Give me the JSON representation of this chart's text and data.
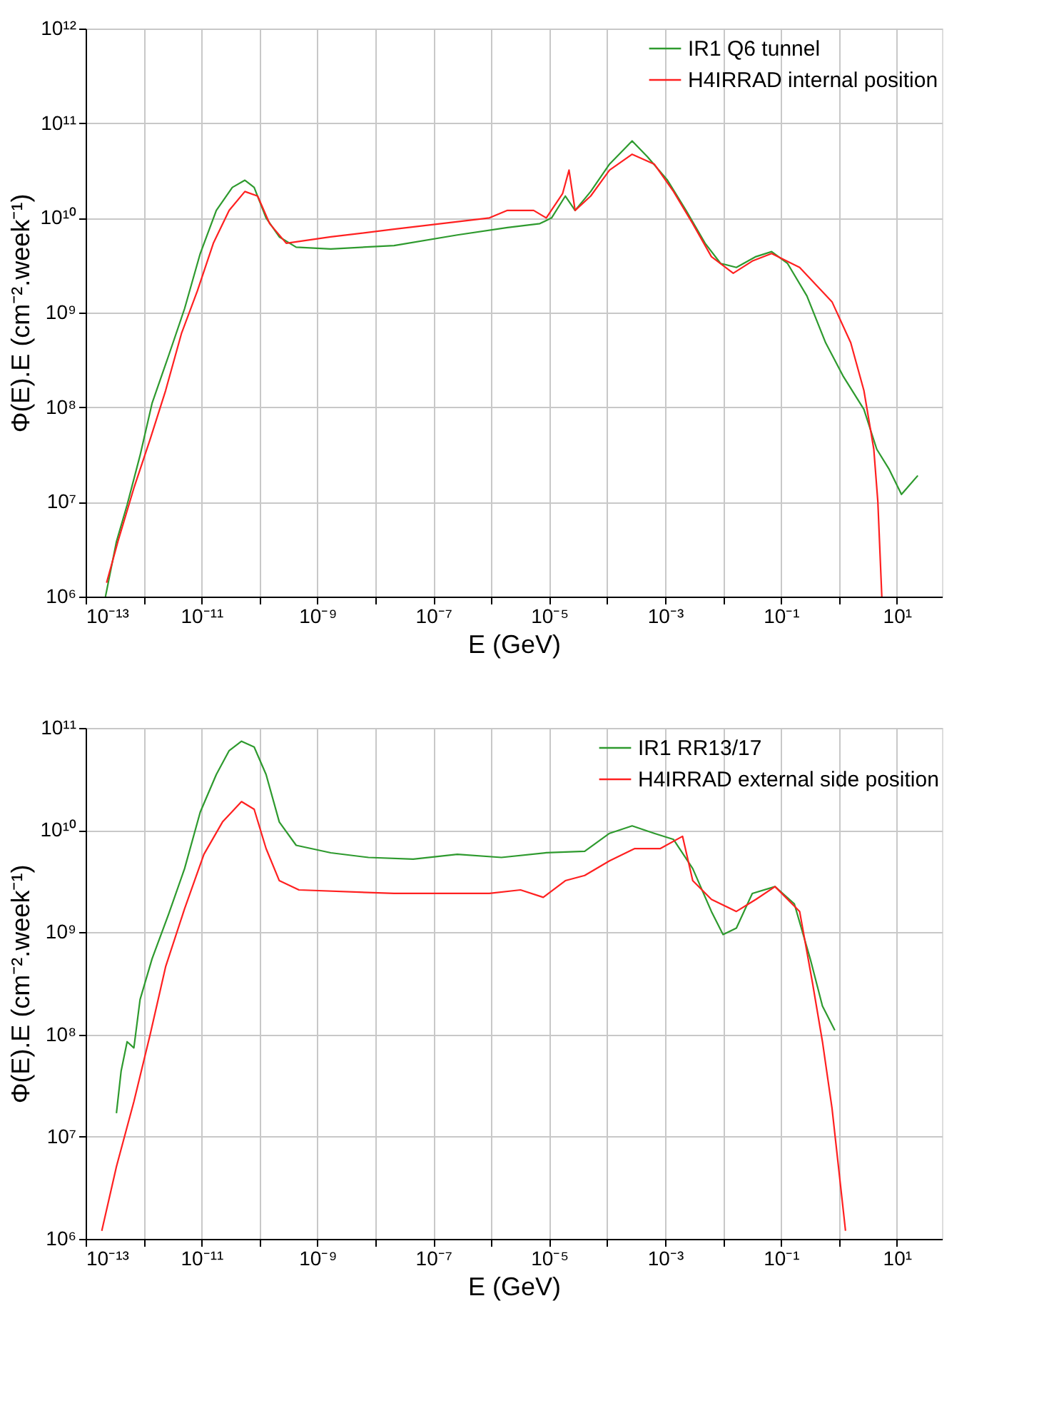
{
  "chart_data": [
    {
      "type": "line",
      "xlabel": "E (GeV)",
      "ylabel": "Φ(E).E  (cm⁻².week⁻¹)",
      "log": "xy",
      "grid": true,
      "legend": "top right",
      "marker": "none",
      "line_style": "solid",
      "xlim": [
        1e-13,
        60
      ],
      "ylim": [
        1000000.0,
        1000000000000.0
      ],
      "xticks": [
        {
          "value": 1e-13,
          "label": "10⁻¹³"
        },
        {
          "value": 1e-12,
          "label": null
        },
        {
          "value": 1e-11,
          "label": "10⁻¹¹"
        },
        {
          "value": 1e-10,
          "label": null
        },
        {
          "value": 1e-09,
          "label": "10⁻⁹"
        },
        {
          "value": 1e-08,
          "label": null
        },
        {
          "value": 1e-07,
          "label": "10⁻⁷"
        },
        {
          "value": 1e-06,
          "label": null
        },
        {
          "value": 1e-05,
          "label": "10⁻⁵"
        },
        {
          "value": 0.0001,
          "label": null
        },
        {
          "value": 0.001,
          "label": "10⁻³"
        },
        {
          "value": 0.01,
          "label": null
        },
        {
          "value": 0.1,
          "label": "10⁻¹"
        },
        {
          "value": 1,
          "label": null
        },
        {
          "value": 10,
          "label": "10¹"
        }
      ],
      "yticks": [
        {
          "value": 1000000.0,
          "label": "10⁶"
        },
        {
          "value": 10000000.0,
          "label": "10⁷"
        },
        {
          "value": 100000000.0,
          "label": "10⁸"
        },
        {
          "value": 1000000000.0,
          "label": "10⁹"
        },
        {
          "value": 10000000000.0,
          "label": "10¹⁰"
        },
        {
          "value": 100000000000.0,
          "label": "10¹¹"
        },
        {
          "value": 1000000000000.0,
          "label": "10¹²"
        }
      ],
      "series": [
        {
          "name": "IR1 Q6 tunnel",
          "color": "#2e9a2e",
          "x": [
            2.2e-13,
            3.4e-13,
            5.2e-13,
            8.7e-13,
            1.4e-12,
            2.7e-12,
            5.1e-12,
            9.5e-12,
            1.8e-11,
            3.4e-11,
            5.6e-11,
            8.1e-11,
            1.3e-10,
            2.2e-10,
            4.3e-10,
            1.7e-09,
            2.1e-08,
            2.6e-07,
            1.9e-06,
            6.9e-06,
            1.1e-05,
            1.9e-05,
            2.8e-05,
            5.2e-05,
            0.00011,
            0.00027,
            0.0005,
            0.0011,
            0.0023,
            0.0049,
            0.0091,
            0.017,
            0.037,
            0.069,
            0.13,
            0.28,
            0.59,
            1.2,
            2.7,
            4.5,
            7.4,
            12,
            23
          ],
          "values": [
            1000000.0,
            3800000.0,
            9300000.0,
            31000000.0,
            110000000.0,
            350000000.0,
            1100000000.0,
            4200000000.0,
            12000000000.0,
            21000000000.0,
            25000000000.0,
            21000000000.0,
            10000000000.0,
            6300000000.0,
            4900000000.0,
            4700000000.0,
            5100000000.0,
            6600000000.0,
            7900000000.0,
            8700000000.0,
            10000000000.0,
            17000000000.0,
            12000000000.0,
            19000000000.0,
            37000000000.0,
            65000000000.0,
            44000000000.0,
            25000000000.0,
            12000000000.0,
            5400000000.0,
            3300000000.0,
            3000000000.0,
            3900000000.0,
            4400000000.0,
            3300000000.0,
            1500000000.0,
            480000000.0,
            210000000.0,
            95000000.0,
            36000000.0,
            22000000.0,
            12000000.0,
            19000000.0
          ]
        },
        {
          "name": "H4IRRAD internal position",
          "color": "#ff2020",
          "x": [
            2.3e-13,
            3.6e-13,
            6.8e-13,
            1.3e-12,
            2.4e-12,
            4.5e-12,
            8.5e-12,
            1.6e-11,
            3e-11,
            5.6e-11,
            9.3e-11,
            1.5e-10,
            2.9e-10,
            1.7e-09,
            2.1e-08,
            9.3e-07,
            1.9e-06,
            5.4e-06,
            8.9e-06,
            1.7e-05,
            2.2e-05,
            2.8e-05,
            5.2e-05,
            0.00011,
            0.00027,
            0.00065,
            0.0014,
            0.003,
            0.0063,
            0.015,
            0.032,
            0.069,
            0.21,
            0.76,
            1.6,
            2.7,
            4.0,
            4.7,
            5.5
          ],
          "values": [
            1400000.0,
            3800000.0,
            14000000.0,
            46000000.0,
            150000000.0,
            600000000.0,
            1700000000.0,
            5400000000.0,
            12000000000.0,
            19000000000.0,
            17000000000.0,
            8700000000.0,
            5400000000.0,
            6300000000.0,
            7600000000.0,
            10000000000.0,
            12000000000.0,
            12000000000.0,
            10000000000.0,
            18000000000.0,
            32000000000.0,
            12000000000.0,
            17000000000.0,
            32000000000.0,
            47000000000.0,
            37000000000.0,
            19000000000.0,
            8700000000.0,
            3900000000.0,
            2600000000.0,
            3500000000.0,
            4200000000.0,
            3000000000.0,
            1300000000.0,
            480000000.0,
            150000000.0,
            36000000.0,
            10000000.0,
            1000000.0
          ]
        }
      ]
    },
    {
      "type": "line",
      "xlabel": "E (GeV)",
      "ylabel": "Φ(E).E  (cm⁻².week⁻¹)",
      "log": "xy",
      "grid": true,
      "legend": "top right",
      "marker": "none",
      "line_style": "solid",
      "xlim": [
        1e-13,
        60
      ],
      "ylim": [
        1000000.0,
        100000000000.0
      ],
      "xticks": [
        {
          "value": 1e-13,
          "label": "10⁻¹³"
        },
        {
          "value": 1e-12,
          "label": null
        },
        {
          "value": 1e-11,
          "label": "10⁻¹¹"
        },
        {
          "value": 1e-10,
          "label": null
        },
        {
          "value": 1e-09,
          "label": "10⁻⁹"
        },
        {
          "value": 1e-08,
          "label": null
        },
        {
          "value": 1e-07,
          "label": "10⁻⁷"
        },
        {
          "value": 1e-06,
          "label": null
        },
        {
          "value": 1e-05,
          "label": "10⁻⁵"
        },
        {
          "value": 0.0001,
          "label": null
        },
        {
          "value": 0.001,
          "label": "10⁻³"
        },
        {
          "value": 0.01,
          "label": null
        },
        {
          "value": 0.1,
          "label": "10⁻¹"
        },
        {
          "value": 1,
          "label": null
        },
        {
          "value": 10,
          "label": "10¹"
        }
      ],
      "yticks": [
        {
          "value": 1000000.0,
          "label": "10⁶"
        },
        {
          "value": 10000000.0,
          "label": "10⁷"
        },
        {
          "value": 100000000.0,
          "label": "10⁸"
        },
        {
          "value": 1000000000.0,
          "label": "10⁹"
        },
        {
          "value": 10000000000.0,
          "label": "10¹⁰"
        },
        {
          "value": 100000000000.0,
          "label": "10¹¹"
        }
      ],
      "series": [
        {
          "name": "IR1 RR13/17",
          "color": "#2e9a2e",
          "x": [
            3.4e-13,
            4.1e-13,
            5.2e-13,
            6.8e-13,
            8.7e-13,
            1.4e-12,
            2.7e-12,
            5.1e-12,
            9.5e-12,
            1.8e-11,
            3e-11,
            4.9e-11,
            8.1e-11,
            1.3e-10,
            2.2e-10,
            4.3e-10,
            1.7e-09,
            7.6e-09,
            4.5e-08,
            2.6e-07,
            1.5e-06,
            8.9e-06,
            4.1e-05,
            0.00011,
            0.00027,
            0.00065,
            0.0014,
            0.003,
            0.0063,
            0.01,
            0.017,
            0.032,
            0.079,
            0.17,
            0.32,
            0.52,
            0.85
          ],
          "values": [
            17000000.0,
            44000000.0,
            85000000.0,
            74000000.0,
            220000000.0,
            550000000.0,
            1500000000.0,
            4200000000.0,
            15000000000.0,
            35000000000.0,
            60000000000.0,
            74000000000.0,
            65000000000.0,
            35000000000.0,
            12000000000.0,
            7100000000.0,
            6000000000.0,
            5400000000.0,
            5200000000.0,
            5800000000.0,
            5400000000.0,
            6000000000.0,
            6200000000.0,
            9300000000.0,
            11000000000.0,
            9300000000.0,
            8100000000.0,
            4200000000.0,
            1600000000.0,
            950000000.0,
            1100000000.0,
            2400000000.0,
            2800000000.0,
            1900000000.0,
            550000000.0,
            190000000.0,
            110000000.0
          ]
        },
        {
          "name": "H4IRRAD external side position",
          "color": "#ff2020",
          "x": [
            1.9e-13,
            3.4e-13,
            6.8e-13,
            1.3e-12,
            2.4e-12,
            5.1e-12,
            1.1e-11,
            2.3e-11,
            4.9e-11,
            8.1e-11,
            1.3e-10,
            2.2e-10,
            4.8e-10,
            2.1e-08,
            9.3e-07,
            3.2e-06,
            7.9e-06,
            1.9e-05,
            4.1e-05,
            0.00011,
            0.0003,
            0.00083,
            0.002,
            0.003,
            0.0063,
            0.017,
            0.037,
            0.079,
            0.21,
            0.35,
            0.52,
            0.76,
            1.3
          ],
          "values": [
            1200000.0,
            5100000.0,
            22000000.0,
            100000000.0,
            460000000.0,
            1700000000.0,
            5800000000.0,
            12000000000.0,
            19000000000.0,
            16000000000.0,
            6600000000.0,
            3200000000.0,
            2600000000.0,
            2400000000.0,
            2400000000.0,
            2600000000.0,
            2200000000.0,
            3200000000.0,
            3600000000.0,
            5000000000.0,
            6600000000.0,
            6600000000.0,
            8700000000.0,
            3200000000.0,
            2100000000.0,
            1600000000.0,
            2100000000.0,
            2800000000.0,
            1600000000.0,
            320000000.0,
            85000000.0,
            19000000.0,
            1200000.0
          ]
        }
      ]
    }
  ]
}
